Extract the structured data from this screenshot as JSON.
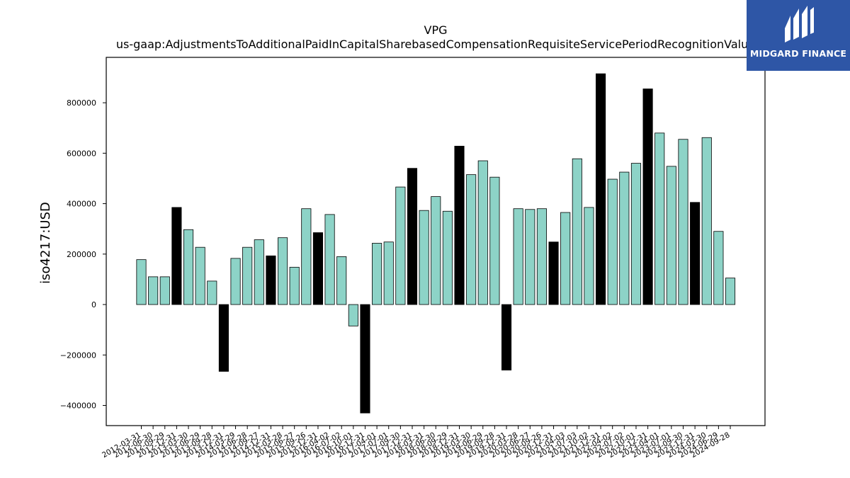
{
  "chart_data": {
    "type": "bar",
    "title": "VPG",
    "subtitle": "us-gaap:AdjustmentsToAdditionalPaidInCapitalSharebasedCompensationRequisiteServicePeriodRecognitionValue",
    "ylabel": "iso4217:USD",
    "xlabel": "",
    "ylim": [
      -480000,
      980000
    ],
    "yticks": [
      -400000,
      -200000,
      0,
      200000,
      400000,
      600000,
      800000
    ],
    "ytick_labels": [
      "−400000",
      "−200000",
      "0",
      "200000",
      "400000",
      "600000",
      "800000"
    ],
    "grid": false,
    "legend": "none",
    "categories": [
      "2012-03-31",
      "2012-06-30",
      "2012-09-29",
      "2012-12-31",
      "2013-03-30",
      "2013-06-29",
      "2013-09-28",
      "2013-12-31",
      "2014-03-29",
      "2014-06-28",
      "2014-09-27",
      "2014-12-31",
      "2015-03-28",
      "2015-06-27",
      "2015-09-26",
      "2015-12-31",
      "2016-04-02",
      "2016-07-02",
      "2016-10-01",
      "2016-12-31",
      "2017-04-01",
      "2017-07-01",
      "2017-09-30",
      "2017-12-31",
      "2018-03-31",
      "2018-06-30",
      "2018-09-29",
      "2018-12-31",
      "2019-03-30",
      "2019-06-29",
      "2019-09-28",
      "2019-12-31",
      "2020-03-28",
      "2020-06-27",
      "2020-09-26",
      "2020-12-31",
      "2021-04-03",
      "2021-07-03",
      "2021-10-02",
      "2021-12-31",
      "2022-04-02",
      "2022-07-02",
      "2022-10-01",
      "2022-12-31",
      "2023-04-01",
      "2023-07-01",
      "2023-09-30",
      "2023-12-31",
      "2024-03-30",
      "2024-06-29",
      "2024-09-28"
    ],
    "values": [
      178000,
      110000,
      110000,
      385000,
      297000,
      227000,
      93000,
      -265000,
      183000,
      227000,
      257000,
      193000,
      265000,
      148000,
      380000,
      285000,
      357000,
      190000,
      -85000,
      -430000,
      243000,
      248000,
      466000,
      540000,
      373000,
      428000,
      370000,
      628000,
      515000,
      570000,
      505000,
      -260000,
      380000,
      377000,
      380000,
      248000,
      365000,
      578000,
      385000,
      915000,
      497000,
      525000,
      560000,
      855000,
      680000,
      548000,
      655000,
      405000,
      662000,
      290000,
      105000
    ],
    "highlight": [
      false,
      false,
      false,
      true,
      false,
      false,
      false,
      true,
      false,
      false,
      false,
      true,
      false,
      false,
      false,
      true,
      false,
      false,
      false,
      true,
      false,
      false,
      false,
      true,
      false,
      false,
      false,
      true,
      false,
      false,
      false,
      true,
      false,
      false,
      false,
      true,
      false,
      false,
      false,
      true,
      false,
      false,
      false,
      true,
      false,
      false,
      false,
      true,
      false,
      false,
      false
    ],
    "colors": {
      "bar": "#8dd3c7",
      "highlight": "#000000",
      "edge": "#000000"
    }
  },
  "logo": {
    "text": "MIDGARD FINANCE"
  }
}
